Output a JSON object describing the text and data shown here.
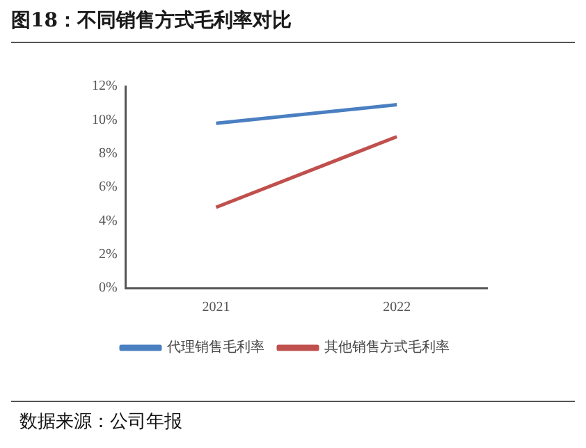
{
  "chart_data": {
    "type": "line",
    "title": "图18：不同销售方式毛利率对比",
    "categories": [
      "2021",
      "2022"
    ],
    "series": [
      {
        "name": "代理销售毛利率",
        "color": "#4a7fc1",
        "values": [
          9.8,
          10.9
        ]
      },
      {
        "name": "其他销售方式毛利率",
        "color": "#c0504d",
        "values": [
          4.8,
          9.0
        ]
      }
    ],
    "ylim": [
      0,
      12
    ],
    "yticks": [
      {
        "value": 0,
        "label": "0%"
      },
      {
        "value": 2,
        "label": "2%"
      },
      {
        "value": 4,
        "label": "4%"
      },
      {
        "value": 6,
        "label": "6%"
      },
      {
        "value": 8,
        "label": "8%"
      },
      {
        "value": 10,
        "label": "10%"
      },
      {
        "value": 12,
        "label": "12%"
      }
    ],
    "grid": false,
    "legend": "bottom",
    "marker": "none",
    "line_style": "solid",
    "annotations": [
      "数据来源：公司年报"
    ]
  }
}
